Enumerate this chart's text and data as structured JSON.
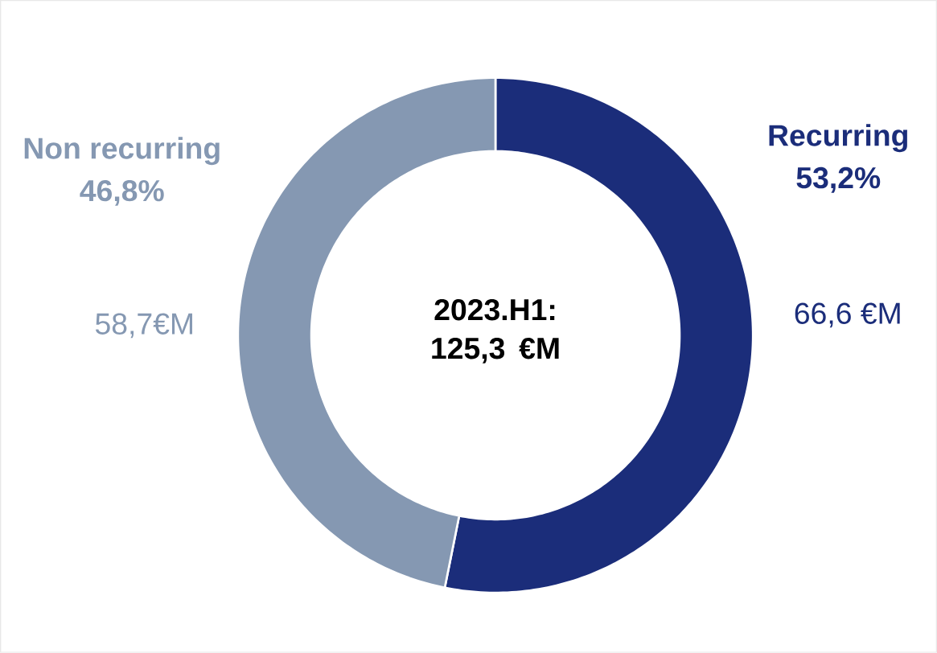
{
  "chart_data": {
    "type": "donut",
    "categories": [
      "Recurring",
      "Non recurring"
    ],
    "values": [
      66.6,
      58.7
    ],
    "value_labels": [
      "66,6 €M",
      "58,7€M"
    ],
    "colors": [
      "#1b2d7a",
      "#8598b2"
    ],
    "annotations": [
      "2023.H1: 125,3 €M",
      "53,2%",
      "46,8%"
    ]
  }
}
